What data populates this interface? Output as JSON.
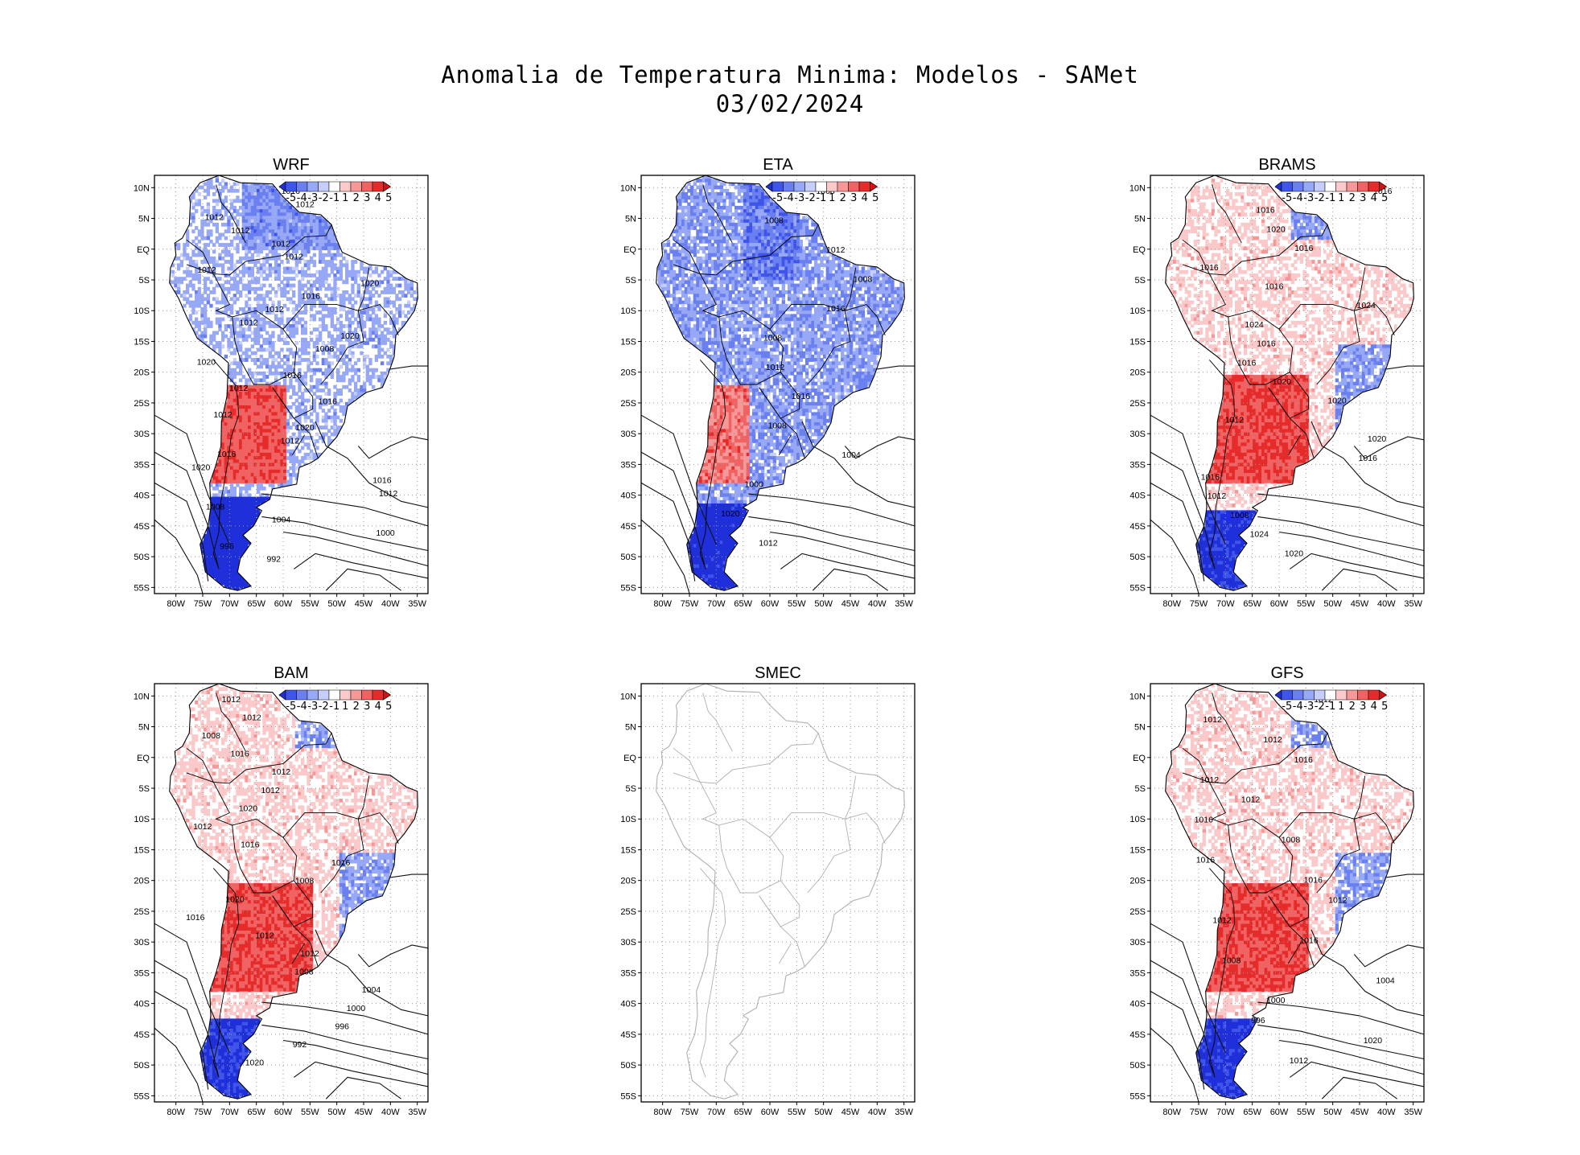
{
  "title": {
    "line1": "Anomalia de Temperatura Minima: Modelos - SAMet",
    "line2": "03/02/2024"
  },
  "axes": {
    "lat_labels": [
      "10N",
      "5N",
      "EQ",
      "5S",
      "10S",
      "15S",
      "20S",
      "25S",
      "30S",
      "35S",
      "40S",
      "45S",
      "50S",
      "55S"
    ],
    "lon_labels": [
      "80W",
      "75W",
      "70W",
      "65W",
      "60W",
      "55W",
      "50W",
      "45W",
      "40W",
      "35W"
    ],
    "lat_range": [
      -56,
      12
    ],
    "lon_range": [
      -84,
      -33
    ]
  },
  "colorbar": {
    "labels": [
      "-5",
      "-4",
      "-3",
      "-2",
      "-1",
      "1",
      "2",
      "3",
      "4",
      "5"
    ],
    "colors": [
      "#1f2fd9",
      "#3f55ea",
      "#6a80f0",
      "#97a8f6",
      "#c6cffb",
      "#ffffff",
      "#fbc9c9",
      "#f79898",
      "#f16262",
      "#e62b2b",
      "#d90f0f"
    ]
  },
  "panels": [
    {
      "name": "WRF",
      "has_data": true,
      "has_colorbar": true,
      "scheme": "mixed",
      "isobars": [
        "1016",
        "1012",
        "1012",
        "1012",
        "1012",
        "1012",
        "1012",
        "1020",
        "1016",
        "1012",
        "1012",
        "1020",
        "1008",
        "1020",
        "1016",
        "1012",
        "1016",
        "1012",
        "1020",
        "1012",
        "1016",
        "1020",
        "1016",
        "1012",
        "1008",
        "1004",
        "1000",
        "996",
        "992"
      ]
    },
    {
      "name": "ETA",
      "has_data": true,
      "has_colorbar": true,
      "scheme": "cold",
      "isobars": [
        "1008",
        "1008",
        "1012",
        "1008",
        "1016",
        "1008",
        "1012",
        "1016",
        "1008",
        "1004",
        "1000",
        "1020",
        "1012"
      ]
    },
    {
      "name": "BRAMS",
      "has_data": true,
      "has_colorbar": true,
      "scheme": "warm",
      "isobars": [
        "1016",
        "1016",
        "1020",
        "1016",
        "1016",
        "1016",
        "1024",
        "1024",
        "1016",
        "1016",
        "1020",
        "1020",
        "1012",
        "1020",
        "1016",
        "1016",
        "1012",
        "1008",
        "1024",
        "1020"
      ]
    },
    {
      "name": "BAM",
      "has_data": true,
      "has_colorbar": true,
      "scheme": "warm",
      "isobars": [
        "1012",
        "1012",
        "1008",
        "1016",
        "1012",
        "1012",
        "1020",
        "1012",
        "1016",
        "1016",
        "1008",
        "1020",
        "1016",
        "1012",
        "1012",
        "1008",
        "1004",
        "1000",
        "996",
        "992",
        "1020"
      ]
    },
    {
      "name": "SMEC",
      "has_data": false,
      "has_colorbar": false,
      "scheme": "none",
      "isobars": []
    },
    {
      "name": "GFS",
      "has_data": true,
      "has_colorbar": true,
      "scheme": "warm",
      "isobars": [
        "1012",
        "1012",
        "1012",
        "1016",
        "1012",
        "1012",
        "1016",
        "1008",
        "1016",
        "1016",
        "1012",
        "1012",
        "1016",
        "1008",
        "1004",
        "1000",
        "996",
        "1020",
        "1012"
      ]
    }
  ]
}
